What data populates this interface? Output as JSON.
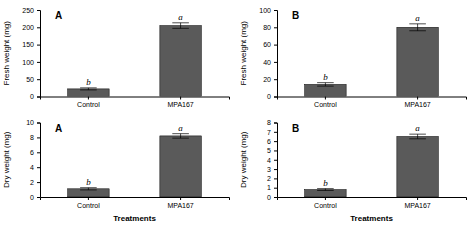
{
  "chart_data": [
    {
      "type": "bar",
      "title": "A",
      "ylabel": "Fresh weight (mg)",
      "categories": [
        "Control",
        "MPA167"
      ],
      "values": [
        22,
        205
      ],
      "errors": [
        3,
        8
      ],
      "annotations": [
        "b",
        "a"
      ],
      "color": "#5a5a5a",
      "ylim": [
        0,
        250
      ],
      "yticks": [
        0,
        50,
        100,
        150,
        200,
        250
      ]
    },
    {
      "type": "bar",
      "title": "B",
      "ylabel": "Fresh weight (mg)",
      "categories": [
        "Control",
        "MPA167"
      ],
      "values": [
        14,
        80
      ],
      "errors": [
        2,
        4
      ],
      "annotations": [
        "b",
        "a"
      ],
      "color": "#5a5a5a",
      "ylim": [
        0,
        100
      ],
      "yticks": [
        0,
        20,
        40,
        60,
        80,
        100
      ]
    },
    {
      "type": "bar",
      "title": "A",
      "ylabel": "Dry weight (mg)",
      "xlabel": "Treatments",
      "categories": [
        "Control",
        "MPA167"
      ],
      "values": [
        1.1,
        8.2
      ],
      "errors": [
        0.15,
        0.3
      ],
      "annotations": [
        "b",
        "a"
      ],
      "color": "#5a5a5a",
      "ylim": [
        0,
        10
      ],
      "yticks": [
        0,
        2,
        4,
        6,
        8,
        10
      ]
    },
    {
      "type": "bar",
      "title": "B",
      "ylabel": "Dry weight (mg)",
      "xlabel": "Treatments",
      "categories": [
        "Control",
        "MPA167"
      ],
      "values": [
        0.8,
        6.5
      ],
      "errors": [
        0.1,
        0.25
      ],
      "annotations": [
        "b",
        "a"
      ],
      "color": "#5a5a5a",
      "ylim": [
        0,
        8
      ],
      "yticks": [
        0,
        1,
        2,
        3,
        4,
        5,
        6,
        7,
        8
      ]
    }
  ]
}
